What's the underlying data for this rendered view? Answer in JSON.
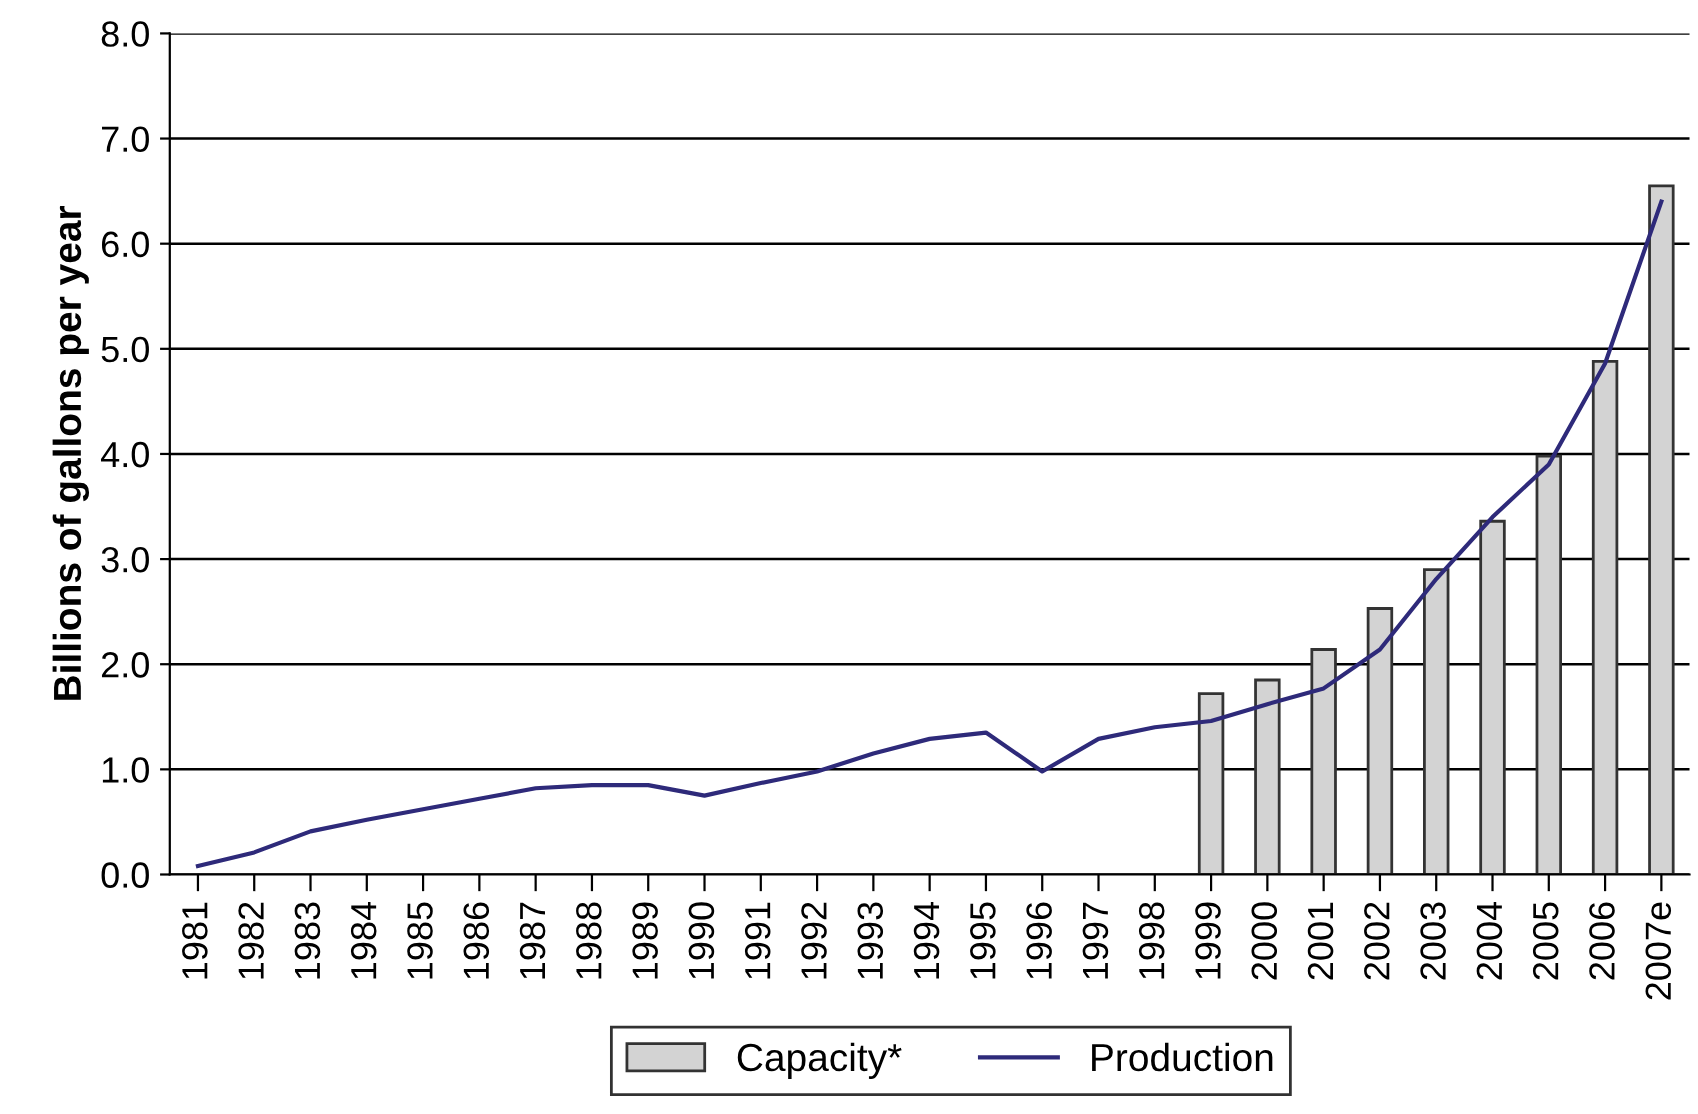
{
  "chart_data": {
    "type": "bar",
    "ylabel": "Billions of gallons per year",
    "categories": [
      "1981",
      "1982",
      "1983",
      "1984",
      "1985",
      "1986",
      "1987",
      "1988",
      "1989",
      "1990",
      "1991",
      "1992",
      "1993",
      "1994",
      "1995",
      "1996",
      "1997",
      "1998",
      "1999",
      "2000",
      "2001",
      "2002",
      "2003",
      "2004",
      "2005",
      "2006",
      "2007e"
    ],
    "series": [
      {
        "name": "Capacity*",
        "color": "#d3d3d3",
        "values": [
          null,
          null,
          null,
          null,
          null,
          null,
          null,
          null,
          null,
          null,
          null,
          null,
          null,
          null,
          null,
          null,
          null,
          null,
          1.72,
          1.85,
          2.14,
          2.53,
          2.9,
          3.36,
          3.98,
          4.88,
          6.55
        ]
      },
      {
        "name": "Production",
        "type": "line",
        "color": "#2e2a7a",
        "values": [
          0.08,
          0.21,
          0.41,
          0.52,
          0.62,
          0.72,
          0.82,
          0.85,
          0.85,
          0.75,
          0.87,
          0.98,
          1.15,
          1.29,
          1.35,
          0.98,
          1.29,
          1.4,
          1.46,
          1.62,
          1.77,
          2.14,
          2.81,
          3.4,
          3.9,
          4.86,
          6.4
        ]
      }
    ],
    "ylim": [
      0,
      8
    ],
    "yticks": [
      {
        "value": 0,
        "label": "0.0"
      },
      {
        "value": 1,
        "label": "1.0"
      },
      {
        "value": 2,
        "label": "2.0"
      },
      {
        "value": 3,
        "label": "3.0"
      },
      {
        "value": 4,
        "label": "4.0"
      },
      {
        "value": 5,
        "label": "5.0"
      },
      {
        "value": 6,
        "label": "6.0"
      },
      {
        "value": 7,
        "label": "7.0"
      },
      {
        "value": 8,
        "label": "8.0"
      }
    ],
    "grid": "y",
    "legend": "bottom"
  }
}
